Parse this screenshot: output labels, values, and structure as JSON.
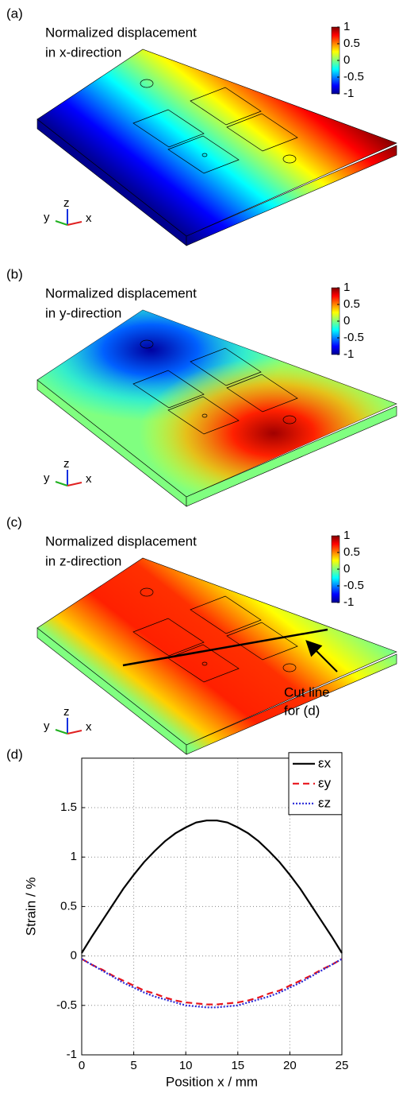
{
  "panels": [
    {
      "label": "(a)",
      "caption": [
        "Normalized displacement",
        "in x-direction"
      ],
      "colorbar_ticks": [
        1,
        0.5,
        0,
        -0.5,
        -1
      ],
      "colorbar_lim": [
        -1,
        1
      ],
      "axes": [
        "y",
        "z",
        "x"
      ]
    },
    {
      "label": "(b)",
      "caption": [
        "Normalized displacement",
        "in y-direction"
      ],
      "colorbar_ticks": [
        1,
        0.5,
        0,
        -0.5,
        -1
      ],
      "colorbar_lim": [
        -1,
        1
      ],
      "axes": [
        "y",
        "z",
        "x"
      ]
    },
    {
      "label": "(c)",
      "caption": [
        "Normalized displacement",
        "in z-direction"
      ],
      "colorbar_ticks": [
        1,
        0.5,
        0,
        -0.5,
        -1
      ],
      "colorbar_lim": [
        -1,
        1
      ],
      "axes": [
        "y",
        "z",
        "x"
      ]
    }
  ],
  "annotation": [
    "Cut line",
    "for (d)"
  ],
  "chart_data": {
    "type": "line",
    "label": "(d)",
    "x": [
      0,
      1,
      2,
      3,
      4,
      5,
      6,
      7,
      8,
      9,
      10,
      11,
      12,
      13,
      14,
      15,
      16,
      17,
      18,
      19,
      20,
      21,
      22,
      23,
      24,
      25
    ],
    "series": [
      {
        "name": "εx",
        "color": "#000000",
        "dash": "none",
        "values": [
          0.03,
          0.2,
          0.36,
          0.52,
          0.68,
          0.82,
          0.95,
          1.06,
          1.16,
          1.24,
          1.3,
          1.35,
          1.37,
          1.37,
          1.35,
          1.3,
          1.24,
          1.16,
          1.06,
          0.95,
          0.82,
          0.68,
          0.52,
          0.36,
          0.2,
          0.03
        ]
      },
      {
        "name": "εy",
        "color": "#e8141c",
        "dash": "8 5",
        "values": [
          -0.03,
          -0.09,
          -0.14,
          -0.2,
          -0.25,
          -0.3,
          -0.35,
          -0.38,
          -0.42,
          -0.45,
          -0.47,
          -0.48,
          -0.49,
          -0.49,
          -0.48,
          -0.47,
          -0.45,
          -0.42,
          -0.38,
          -0.35,
          -0.3,
          -0.25,
          -0.2,
          -0.14,
          -0.09,
          -0.03
        ]
      },
      {
        "name": "εz",
        "color": "#2a2ad8",
        "dash": "2 2",
        "values": [
          -0.03,
          -0.09,
          -0.15,
          -0.21,
          -0.27,
          -0.32,
          -0.37,
          -0.41,
          -0.44,
          -0.47,
          -0.5,
          -0.51,
          -0.52,
          -0.52,
          -0.51,
          -0.5,
          -0.47,
          -0.44,
          -0.41,
          -0.37,
          -0.32,
          -0.27,
          -0.21,
          -0.15,
          -0.09,
          -0.03
        ]
      }
    ],
    "xlim": [
      0,
      25
    ],
    "ylim": [
      -1,
      2
    ],
    "xticks": [
      0,
      5,
      10,
      15,
      20,
      25
    ],
    "yticks": [
      -1,
      -0.5,
      0,
      0.5,
      1,
      1.5
    ],
    "xlabel": "Position x / mm",
    "ylabel": "Strain / %",
    "grid": true,
    "legend": "upper right"
  }
}
